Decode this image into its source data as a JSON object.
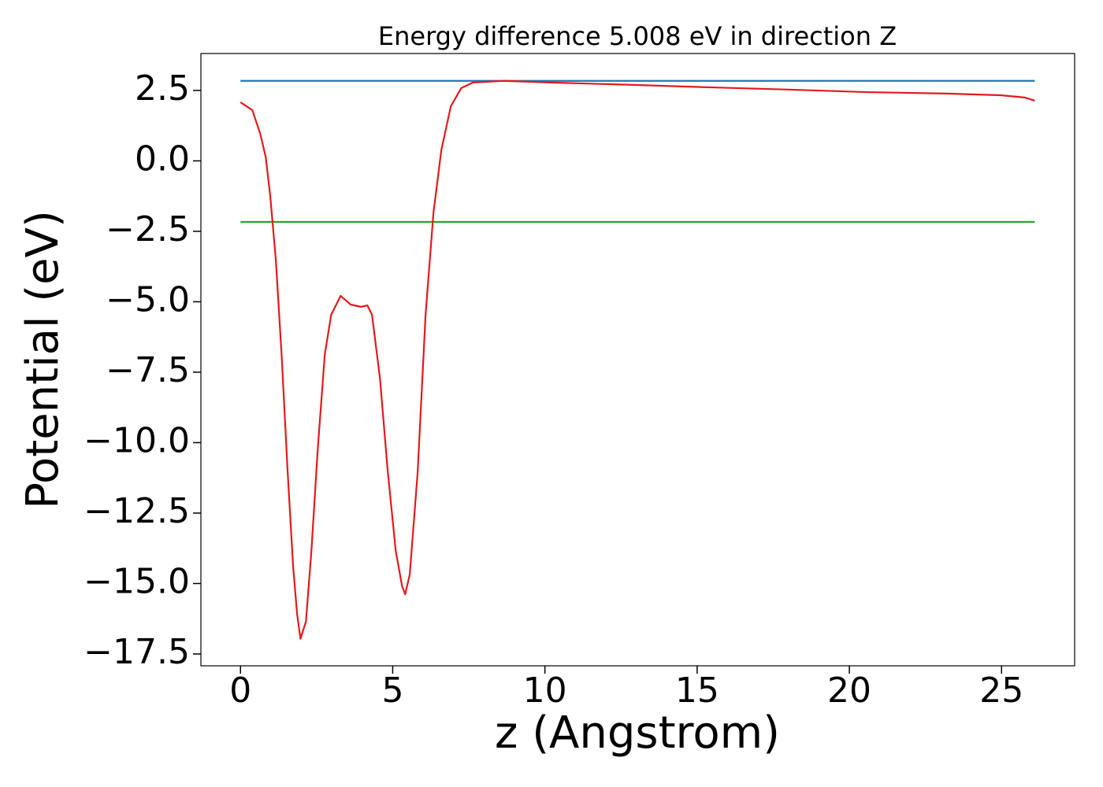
{
  "chart_data": {
    "type": "line",
    "title": "Energy difference 5.008 eV in direction Z",
    "xlabel": "z (Angstrom)",
    "ylabel": "Potential (eV)",
    "xlim": [
      -1.3,
      27.4
    ],
    "ylim": [
      -17.92,
      3.81
    ],
    "xticks": [
      0,
      5,
      10,
      15,
      20,
      25
    ],
    "yticks": [
      {
        "value": 2.5,
        "label": "2.5"
      },
      {
        "value": 0,
        "label": "0.0"
      },
      {
        "value": -2.5,
        "label": "−2.5"
      },
      {
        "value": -5,
        "label": "−5.0"
      },
      {
        "value": -7.5,
        "label": "−7.5"
      },
      {
        "value": -10,
        "label": "−10.0"
      },
      {
        "value": -12.5,
        "label": "−12.5"
      },
      {
        "value": -15,
        "label": "−15.0"
      },
      {
        "value": -17.5,
        "label": "−17.5"
      }
    ],
    "series": [
      {
        "color": "#1f77b4",
        "x": [
          0,
          26.09
        ],
        "values": [
          2.84,
          2.84
        ]
      },
      {
        "color": "#2ca02c",
        "x": [
          0,
          26.09
        ],
        "values": [
          -2.168,
          -2.168
        ]
      },
      {
        "color": "#e31a1c",
        "x": [
          0,
          0.39,
          0.65,
          0.83,
          0.98,
          1.16,
          1.35,
          1.55,
          1.73,
          1.86,
          1.97,
          2.15,
          2.33,
          2.54,
          2.77,
          2.98,
          3.29,
          3.62,
          3.96,
          4.17,
          4.32,
          4.58,
          4.84,
          5.1,
          5.31,
          5.41,
          5.56,
          5.82,
          6.08,
          6.34,
          6.6,
          6.91,
          7.25,
          7.63,
          8.67,
          10.22,
          12.81,
          15.4,
          17.99,
          20.57,
          23.16,
          24.97,
          25.75,
          26.09
        ],
        "values": [
          2.08,
          1.8,
          0.96,
          0.13,
          -1.27,
          -3.5,
          -6.86,
          -11.05,
          -14.4,
          -16.08,
          -16.96,
          -16.35,
          -13.84,
          -10.2,
          -6.86,
          -5.46,
          -4.79,
          -5.1,
          -5.18,
          -5.13,
          -5.46,
          -7.7,
          -11.05,
          -13.84,
          -15.1,
          -15.38,
          -14.68,
          -11.05,
          -5.46,
          -1.83,
          0.4,
          1.94,
          2.58,
          2.78,
          2.84,
          2.78,
          2.7,
          2.61,
          2.53,
          2.44,
          2.39,
          2.33,
          2.25,
          2.14
        ]
      }
    ]
  }
}
